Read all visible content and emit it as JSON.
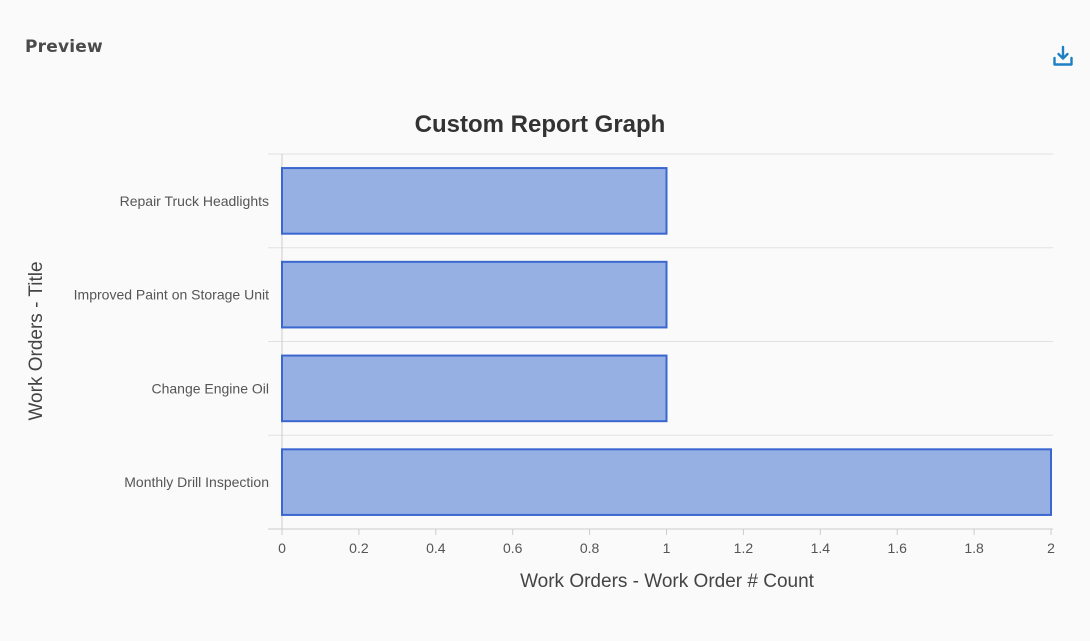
{
  "header": {
    "title": "Preview",
    "download_icon": "download-icon"
  },
  "colors": {
    "bar_fill": "#96b0e3",
    "bar_stroke": "#3a66d0",
    "icon": "#1f7fc4",
    "grid": "#e2e2e2"
  },
  "chart_data": {
    "type": "bar",
    "orientation": "horizontal",
    "title": "Custom Report Graph",
    "xlabel": "Work Orders - Work Order # Count",
    "ylabel": "Work Orders - Title",
    "categories": [
      "Repair Truck Headlights",
      "Improved Paint on Storage Unit",
      "Change Engine Oil",
      "Monthly Drill Inspection"
    ],
    "values": [
      1,
      1,
      1,
      2
    ],
    "xlim": [
      0,
      2
    ],
    "xticks": [
      "0",
      "0.2",
      "0.4",
      "0.6",
      "0.8",
      "1",
      "1.2",
      "1.4",
      "1.6",
      "1.8",
      "2"
    ],
    "grid": true,
    "legend": "none"
  }
}
